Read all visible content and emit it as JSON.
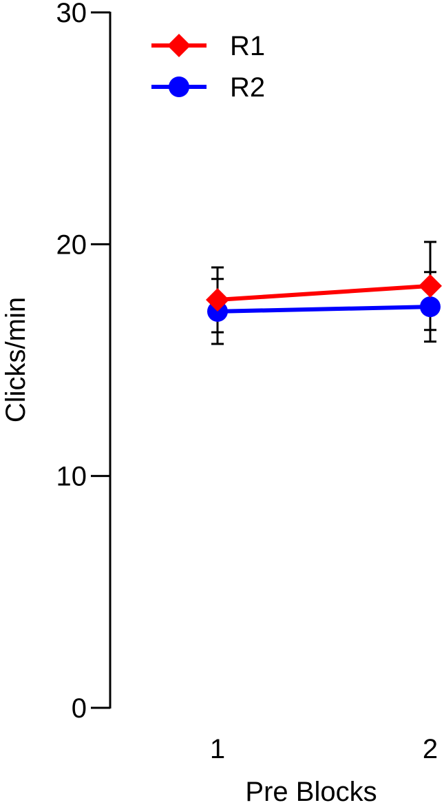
{
  "chart_data": {
    "type": "line",
    "title": "",
    "xlabel": "Pre Blocks",
    "ylabel": "Clicks/min",
    "x": [
      1,
      2
    ],
    "x_tick_labels": [
      "1",
      "2"
    ],
    "ylim": [
      0,
      30
    ],
    "y_ticks": [
      0,
      10,
      20,
      30
    ],
    "y_tick_labels": [
      "0",
      "10",
      "20",
      "30"
    ],
    "grid": false,
    "legend_position": "top-left",
    "series": [
      {
        "name": "R1",
        "marker": "diamond",
        "color": "#ff0000",
        "values": [
          17.6,
          18.2
        ],
        "error": [
          1.4,
          1.9
        ]
      },
      {
        "name": "R2",
        "marker": "circle",
        "color": "#0000ff",
        "values": [
          17.1,
          17.3
        ],
        "error": [
          1.4,
          1.5
        ]
      }
    ]
  }
}
